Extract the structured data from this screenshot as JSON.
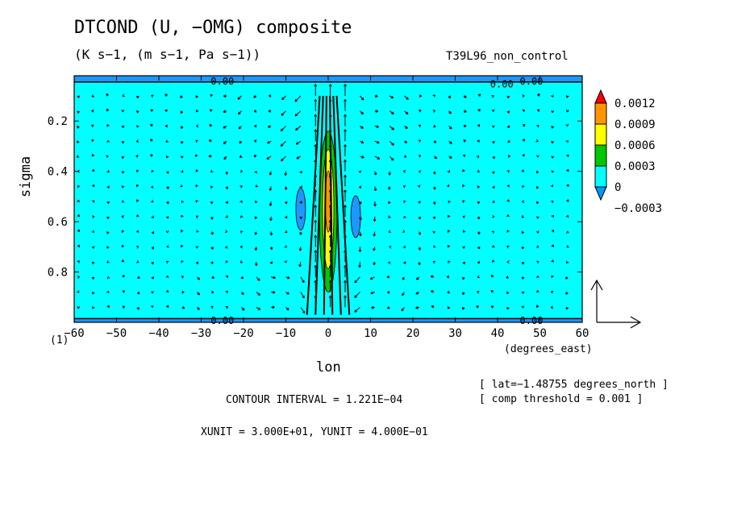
{
  "title": "DTCOND (U, −OMG) composite",
  "subtitle": "(K s−1, (m s−1, Pa s−1))",
  "run_label": "T39L96_non_control",
  "frame_label": "(1)",
  "info": {
    "lat": "[ lat=−1.48755 degrees_north ]",
    "threshold": "[ comp threshold = 0.001 ]",
    "contour_interval": "CONTOUR INTERVAL = 1.221E−04",
    "units": "XUNIT = 3.000E+01, YUNIT = 4.000E−01"
  },
  "chart_data": {
    "type": "contour+vector",
    "title": "DTCOND (U, −OMG) composite",
    "xlabel": "lon",
    "xunits": "(degrees_east)",
    "ylabel": "sigma",
    "xlim": [
      -60,
      60
    ],
    "ylim": [
      1.0,
      0.02
    ],
    "xticks": [
      -60,
      -50,
      -40,
      -30,
      -20,
      -10,
      0,
      10,
      20,
      30,
      40,
      50,
      60
    ],
    "xtick_labels": [
      "−60",
      "−50",
      "−40",
      "−30",
      "−20",
      "−10",
      "0",
      "10",
      "20",
      "30",
      "40",
      "50",
      "60"
    ],
    "yticks": [
      0.2,
      0.4,
      0.6,
      0.8
    ],
    "ytick_labels": [
      "0.2",
      "0.4",
      "0.6",
      "0.8"
    ],
    "contour_labels": [
      {
        "lon": -25,
        "sigma": 0.04,
        "text": "0.00"
      },
      {
        "lon": 41,
        "sigma": 0.05,
        "text": "0.00"
      },
      {
        "lon": 48,
        "sigma": 0.04,
        "text": "0.00"
      },
      {
        "lon": -25,
        "sigma": 0.99,
        "text": "0.00"
      },
      {
        "lon": 48,
        "sigma": 0.99,
        "text": "0.00"
      }
    ],
    "colorbar": {
      "labels": [
        "0.0012",
        "0.0009",
        "0.0006",
        "0.0003",
        "0",
        "−0.0003"
      ],
      "colors": [
        "#ff0000",
        "#ff9600",
        "#ffff00",
        "#00c800",
        "#00ffff",
        "#0096ff"
      ]
    },
    "field_colors": {
      "background": "#00ffff",
      "negative": "#1e96ff",
      "positive_weak": "#00c800",
      "positive_mid": "#ffff00",
      "positive_high": "#ff9600"
    }
  }
}
